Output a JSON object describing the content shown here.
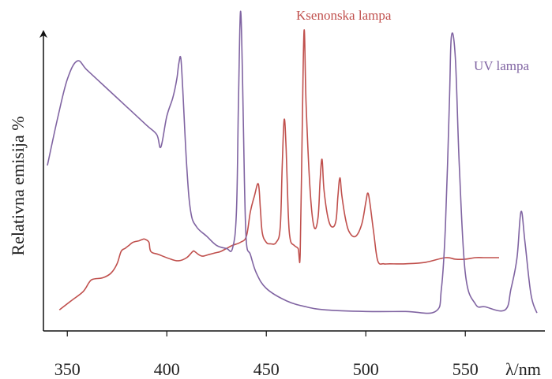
{
  "chart_data": {
    "type": "line",
    "xlabel": "λ/nm",
    "ylabel": "Relativna emisija %",
    "xlim": [
      338,
      590
    ],
    "ylim": [
      0,
      100
    ],
    "x_ticks": [
      350,
      400,
      450,
      500,
      550
    ],
    "grid": false,
    "series": [
      {
        "name": "Ksenonska lampa",
        "color": "#c0504d",
        "x": [
          346,
          352,
          358,
          361,
          363,
          368,
          372,
          375,
          377,
          379,
          381,
          383,
          386,
          388,
          389,
          391,
          392,
          396,
          402,
          406,
          410,
          413,
          414,
          416,
          418,
          421,
          424,
          427,
          430,
          433,
          437,
          440,
          442,
          444,
          446,
          447,
          448,
          450,
          452,
          455,
          457,
          458,
          459,
          460,
          461,
          462,
          464,
          466,
          467,
          468,
          469,
          470,
          472,
          474,
          476,
          477,
          478,
          479,
          481,
          483,
          485,
          486,
          487,
          488,
          490,
          492,
          495,
          498,
          500,
          501,
          502,
          504,
          506,
          509,
          512,
          520,
          530,
          540,
          545,
          550,
          555,
          560,
          567
        ],
        "y": [
          3,
          6,
          9,
          12,
          13,
          13.5,
          15,
          18,
          22,
          23,
          24,
          25,
          25.5,
          26,
          26,
          25,
          22,
          21,
          19.5,
          19,
          20,
          22,
          22,
          21,
          20.5,
          21,
          21.5,
          22,
          23,
          24,
          25,
          27,
          35,
          40,
          44,
          36,
          28,
          25,
          24.5,
          25,
          30,
          50,
          65,
          55,
          35,
          26,
          24,
          23,
          21,
          60,
          94,
          70,
          42,
          30,
          33,
          45,
          52,
          42,
          33,
          30,
          32,
          40,
          46,
          40,
          32,
          28,
          27,
          31,
          38,
          41,
          38,
          28,
          19,
          18,
          18,
          18,
          18.5,
          20,
          19.5,
          19.5,
          20,
          20,
          20
        ]
      },
      {
        "name": "UV lampa",
        "color": "#8064a2",
        "x": [
          340,
          345,
          350,
          355,
          360,
          370,
          380,
          390,
          395,
          397,
          400,
          403,
          405,
          406,
          407,
          408,
          410,
          412,
          415,
          420,
          425,
          430,
          433,
          435,
          436,
          437,
          438,
          439,
          440,
          442,
          445,
          450,
          460,
          470,
          480,
          500,
          520,
          535,
          538,
          540,
          542,
          543,
          545,
          547,
          550,
          555,
          560,
          570,
          573,
          576,
          578,
          580,
          583,
          586
        ],
        "y": [
          50,
          65,
          78,
          84,
          81,
          75,
          69,
          63,
          60,
          56,
          66,
          72,
          78,
          83,
          85,
          75,
          50,
          35,
          30,
          27,
          24,
          23,
          23,
          35,
          70,
          100,
          80,
          45,
          25,
          21,
          15,
          10,
          6,
          4,
          3,
          2.5,
          2.5,
          2.5,
          10,
          30,
          70,
          92,
          85,
          50,
          15,
          5,
          4,
          3,
          10,
          20,
          35,
          25,
          8,
          2
        ]
      }
    ]
  }
}
